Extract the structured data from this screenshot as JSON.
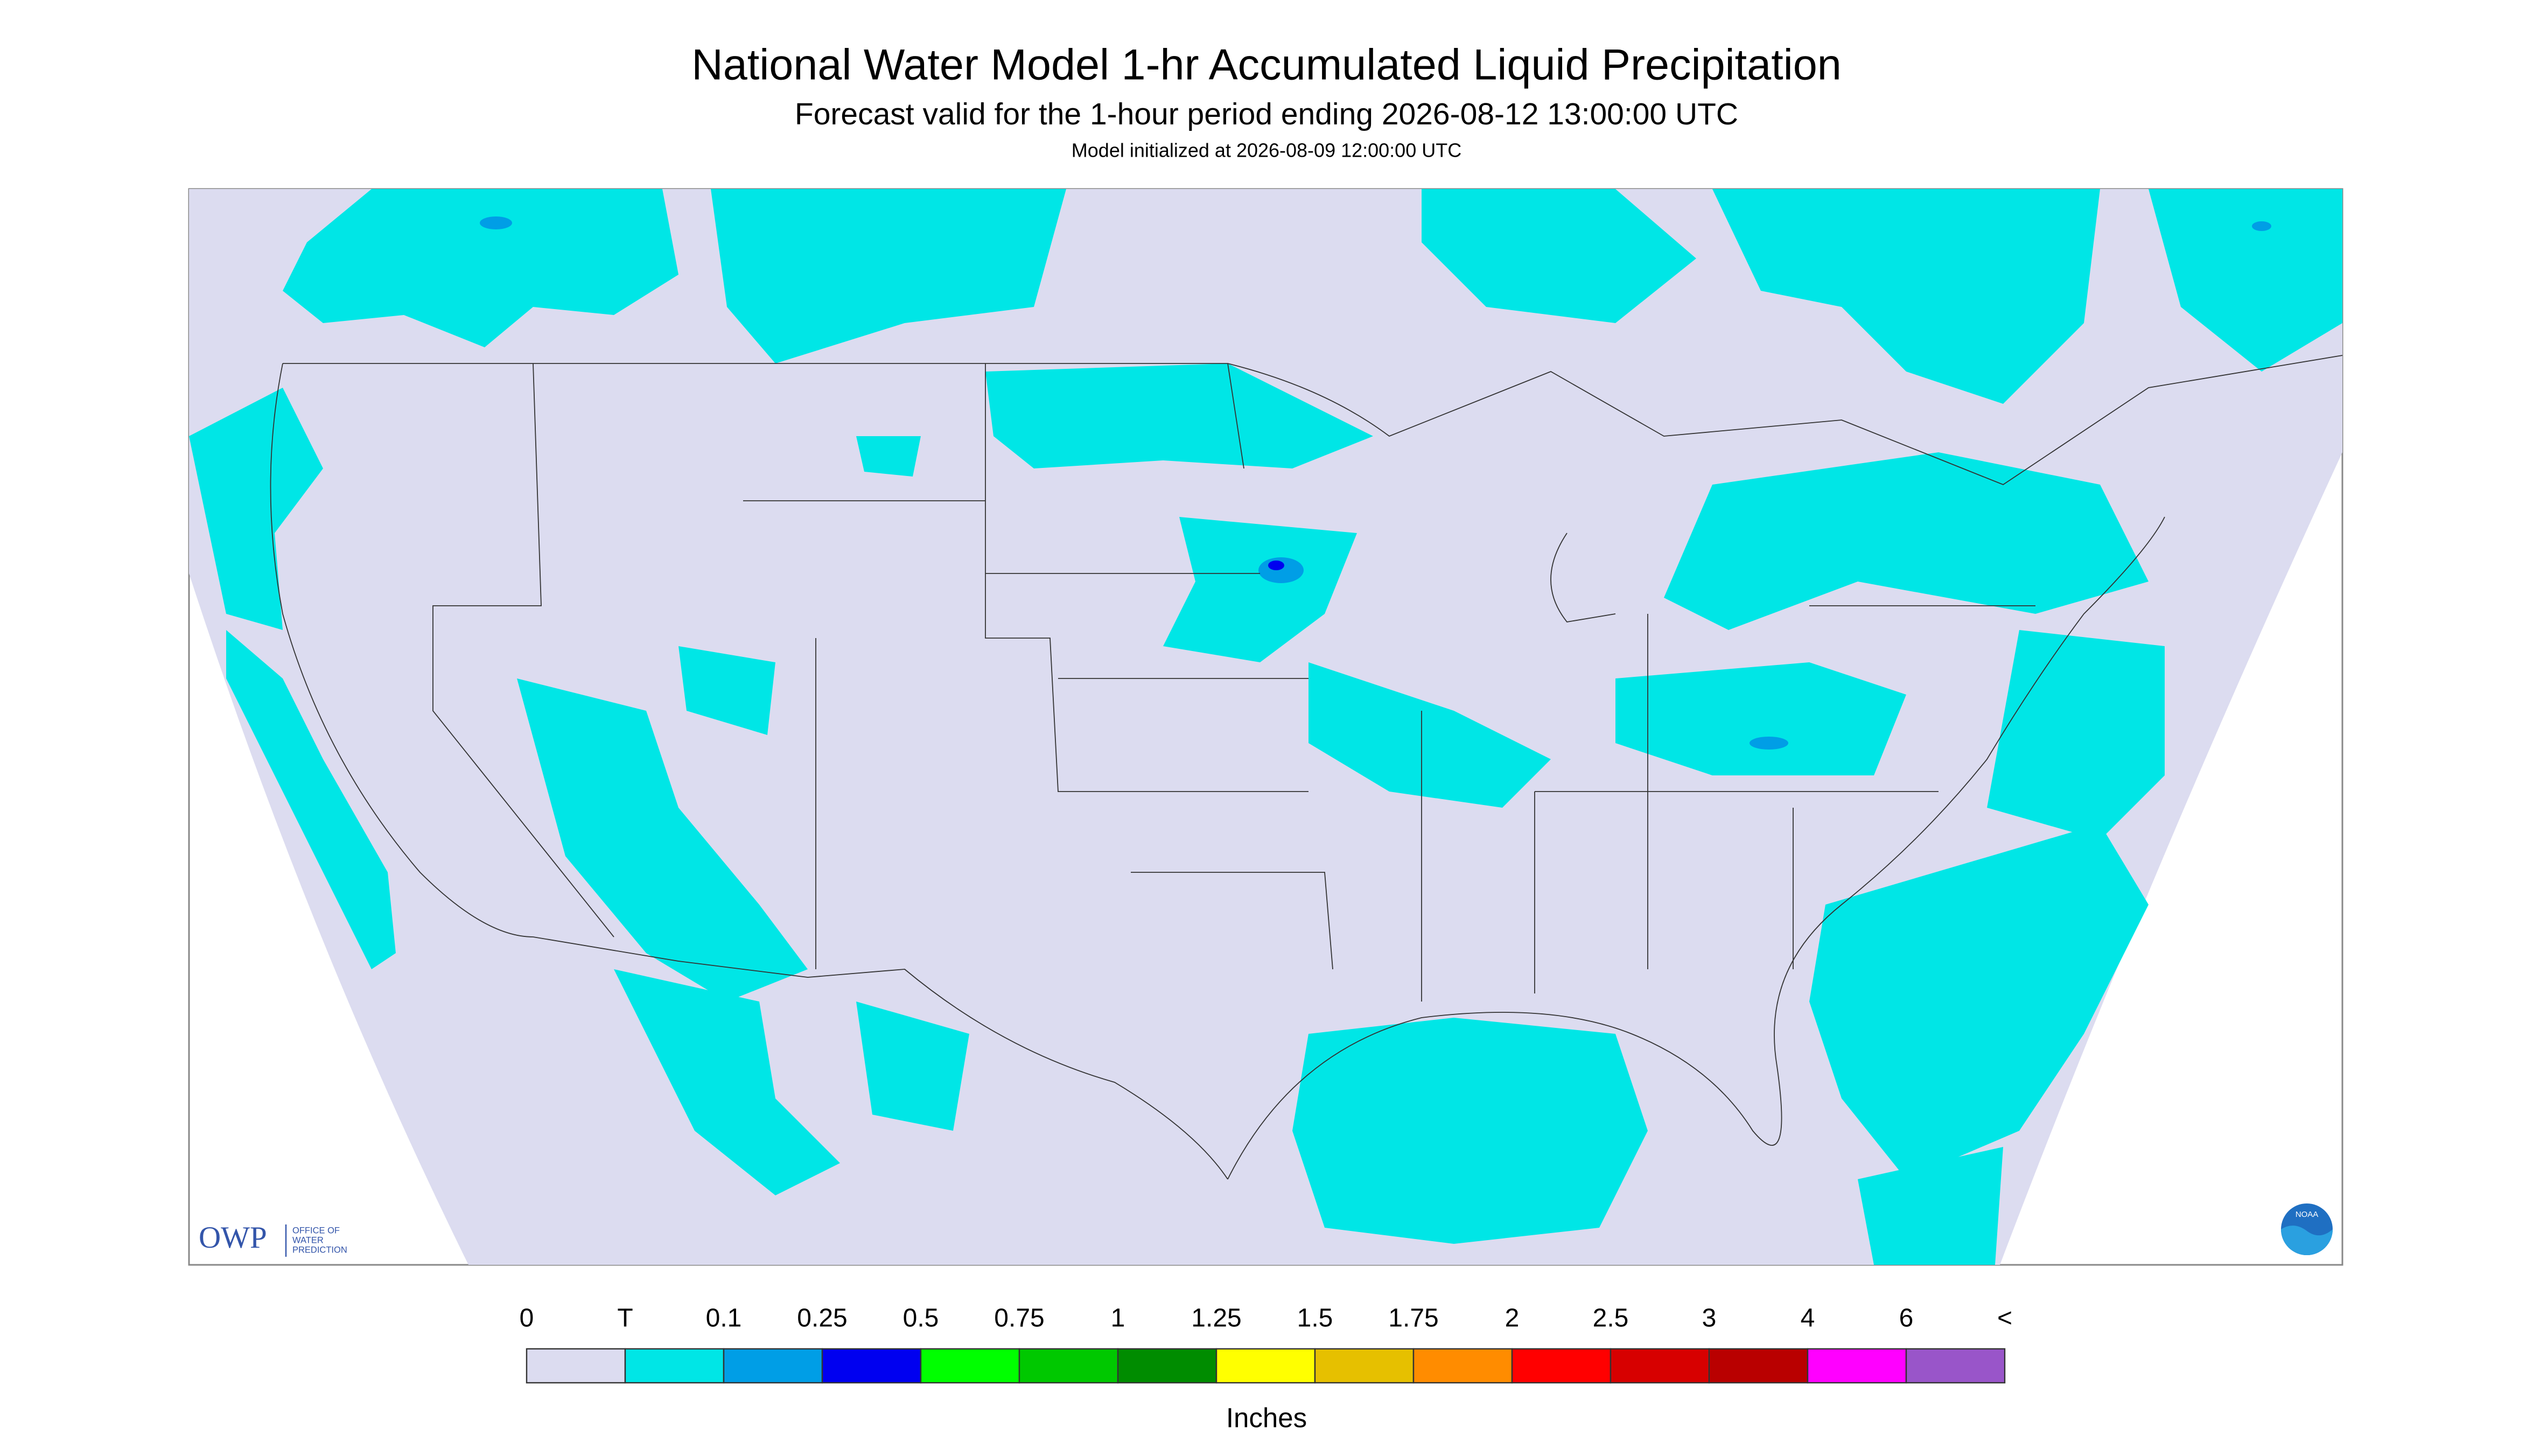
{
  "header": {
    "title": "National Water Model 1-hr Accumulated Liquid Precipitation",
    "subtitle": "Forecast valid for the 1-hour period ending 2026-08-12 13:00:00 UTC",
    "note": "Model initialized at 2026-08-09 12:00:00 UTC"
  },
  "logo": {
    "owp": "OWP",
    "office_lines": [
      "OFFICE OF",
      "WATER",
      "PREDICTION"
    ],
    "noaa": "NOAA"
  },
  "legend": {
    "labels": [
      "0",
      "T",
      "0.1",
      "0.25",
      "0.5",
      "0.75",
      "1",
      "1.25",
      "1.5",
      "1.75",
      "2",
      "2.5",
      "3",
      "4",
      "6",
      "<"
    ],
    "colors": [
      "#dcdcf0",
      "#00e6e6",
      "#009ee6",
      "#0000f0",
      "#00ff00",
      "#00c800",
      "#008c00",
      "#ffff00",
      "#e6c000",
      "#ff8c00",
      "#ff0000",
      "#d70000",
      "#b90000",
      "#ff00ff",
      "#9955c9"
    ],
    "unit": "Inches"
  }
}
